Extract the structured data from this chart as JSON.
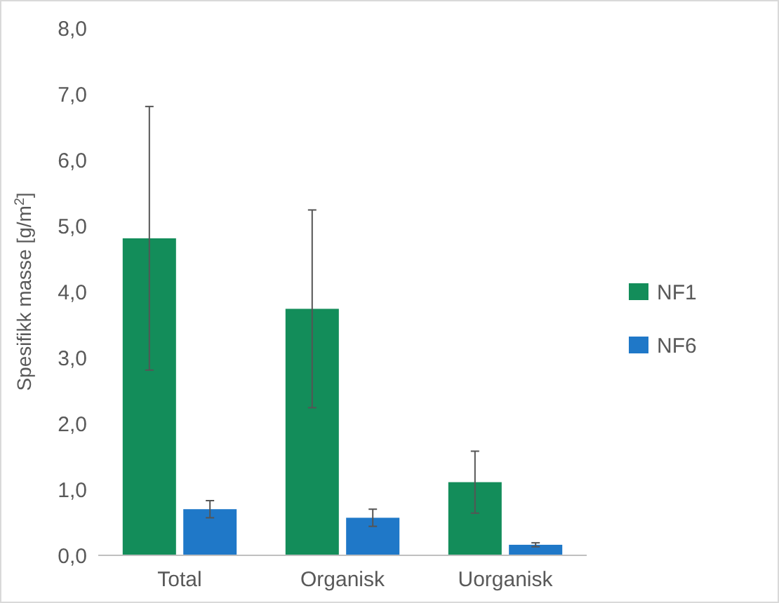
{
  "chart_data": {
    "type": "bar",
    "ylabel": "Spesifikk masse [g/m$^{2}$]",
    "categories": [
      "Total",
      "Organisk",
      "Uorganisk"
    ],
    "series": [
      {
        "name": "NF1",
        "color": "#138d5a",
        "values": [
          4.81,
          3.74,
          1.11
        ],
        "errors": [
          2.0,
          1.5,
          0.47
        ]
      },
      {
        "name": "NF6",
        "color": "#1f78c8",
        "values": [
          0.7,
          0.57,
          0.16
        ],
        "errors": [
          0.13,
          0.13,
          0.03
        ]
      }
    ],
    "ylim": [
      0,
      8
    ],
    "yticks": [
      {
        "value": 0,
        "label": "0,0"
      },
      {
        "value": 1,
        "label": "1,0"
      },
      {
        "value": 2,
        "label": "2,0"
      },
      {
        "value": 3,
        "label": "3,0"
      },
      {
        "value": 4,
        "label": "4,0"
      },
      {
        "value": 5,
        "label": "5,0"
      },
      {
        "value": 6,
        "label": "6,0"
      },
      {
        "value": 7,
        "label": "7,0"
      },
      {
        "value": 8,
        "label": "8,0"
      }
    ],
    "grid": false,
    "legend": "right"
  }
}
